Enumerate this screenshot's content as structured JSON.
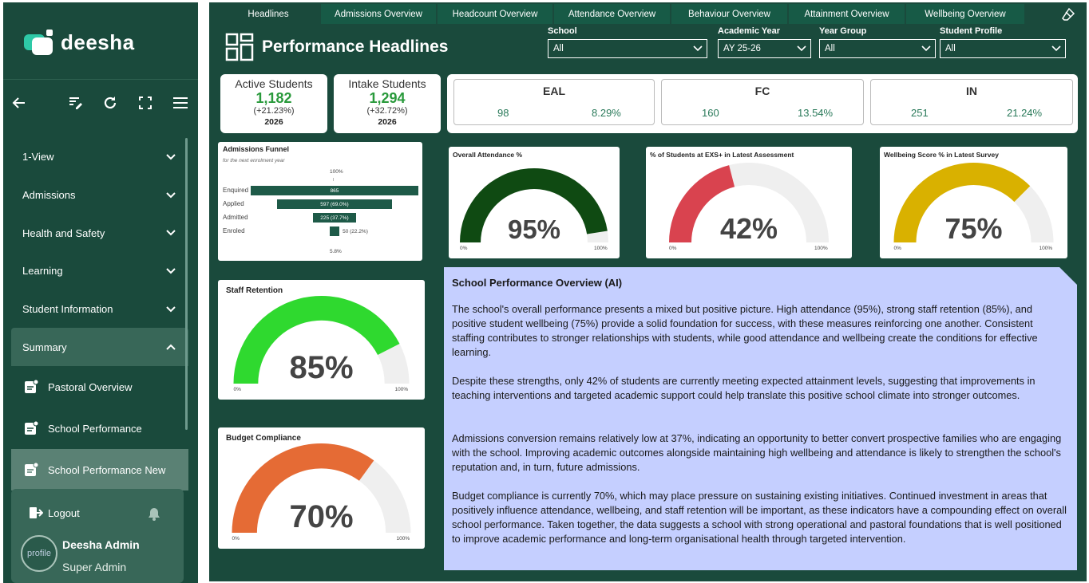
{
  "brand": {
    "name": "deesha",
    "icon": "deesha-logo"
  },
  "sidebar": {
    "toolbar_icons": [
      "back-arrow-icon",
      "edit-list-icon",
      "refresh-icon",
      "fullscreen-icon",
      "hamburger-menu-icon"
    ],
    "nav": [
      {
        "label": "1-View",
        "icon": "chevron-down-icon"
      },
      {
        "label": "Admissions",
        "icon": "chevron-down-icon"
      },
      {
        "label": "Health and Safety",
        "icon": "chevron-down-icon"
      },
      {
        "label": "Learning",
        "icon": "chevron-down-icon"
      },
      {
        "label": "Student Information",
        "icon": "chevron-down-icon"
      },
      {
        "label": "Summary",
        "icon": "chevron-up-icon"
      }
    ],
    "summary_items": [
      {
        "label": "Pastoral Overview",
        "icon": "document-icon"
      },
      {
        "label": "School Performance",
        "icon": "document-icon"
      },
      {
        "label": "School Performance New",
        "icon": "document-icon",
        "active": true
      }
    ],
    "logout_label": "Logout",
    "user": {
      "name": "Deesha Admin",
      "role": "Super Admin",
      "avatar_text": "profile"
    }
  },
  "tabs": [
    {
      "label": "Headlines",
      "active": true
    },
    {
      "label": "Admissions Overview"
    },
    {
      "label": "Headcount Overview"
    },
    {
      "label": "Attendance Overview"
    },
    {
      "label": "Behaviour Overview"
    },
    {
      "label": "Attainment Overview"
    },
    {
      "label": "Wellbeing Overview"
    }
  ],
  "header": {
    "title": "Performance Headlines",
    "icon": "dashboard-grid-icon"
  },
  "filters": [
    {
      "label": "School",
      "value": "All"
    },
    {
      "label": "Academic Year",
      "value": "AY 25-26"
    },
    {
      "label": "Year Group",
      "value": "All"
    },
    {
      "label": "Student Profile",
      "value": "All"
    }
  ],
  "kpis": [
    {
      "title": "Active Students",
      "value": "1,182",
      "change": "(+21.23%)",
      "year": "2026"
    },
    {
      "title": "Intake Students",
      "value": "1,294",
      "change": "(+32.72%)",
      "year": "2026"
    }
  ],
  "profile_stats": [
    {
      "title": "EAL",
      "count": "98",
      "pct": "8.29%"
    },
    {
      "title": "FC",
      "count": "160",
      "pct": "13.54%"
    },
    {
      "title": "IN",
      "count": "251",
      "pct": "21.24%"
    }
  ],
  "funnel": {
    "title": "Admissions Funnel",
    "subtitle": "for the next enrolment year",
    "top_label": "100%",
    "bottom_label": "5.8%",
    "stages": [
      {
        "label": "Enquired",
        "value": 865,
        "text": "865",
        "pct": 100
      },
      {
        "label": "Applied",
        "value": 597,
        "text": "597 (69.0%)",
        "pct": 69.0
      },
      {
        "label": "Admitted",
        "value": 225,
        "text": "225 (37.7%)",
        "pct": 26.0
      },
      {
        "label": "Enroled",
        "value": 50,
        "text": "50 (22.2%)",
        "pct": 5.8
      }
    ]
  },
  "gauges": [
    {
      "id": "attendance",
      "title": "Overall Attendance %",
      "value": 95,
      "label": "95%",
      "color": "#0f4a12",
      "min": "0%",
      "max": "100%"
    },
    {
      "id": "exs",
      "title": "% of Students at EXS+ in Latest Assessment",
      "value": 42,
      "label": "42%",
      "color": "#d9434f",
      "min": "0%",
      "max": "100%"
    },
    {
      "id": "wellbeing",
      "title": "Wellbeing Score % in Latest Survey",
      "value": 75,
      "label": "75%",
      "color": "#d9b100",
      "min": "0%",
      "max": "100%"
    },
    {
      "id": "retention",
      "title": "Staff Retention",
      "value": 85,
      "label": "85%",
      "color": "#2fd92f",
      "min": "0%",
      "max": "100%"
    },
    {
      "id": "budget",
      "title": "Budget Compliance",
      "value": 70,
      "label": "70%",
      "color": "#e56b35",
      "min": "0%",
      "max": "100%"
    }
  ],
  "ai": {
    "title": "School Performance Overview (AI)",
    "paragraphs": [
      "The school's overall performance presents a mixed but positive picture. High attendance (95%), strong staff retention (85%), and positive student wellbeing (75%) provide a solid foundation for success, with these measures reinforcing one another. Consistent staffing contributes to stronger relationships with students, while good attendance and wellbeing create the conditions for effective learning.",
      "Despite these strengths, only 42% of students are currently meeting expected attainment levels, suggesting that improvements in teaching interventions and targeted academic support could help translate this positive school climate into stronger outcomes.",
      "Admissions conversion remains relatively low at 37%, indicating an opportunity to better convert prospective families who are engaging with the school. Improving academic outcomes alongside maintaining high wellbeing and attendance is likely to strengthen the school's reputation and, in turn, future admissions.",
      "Budget compliance is currently 70%, which may place pressure on sustaining existing initiatives. Continued investment in areas that positively influence attendance, wellbeing, and staff retention will be important, as these indicators have a compounding effect on overall school performance. Taken together, the data suggests a school with strong operational and pastoral foundations that is well positioned to improve academic performance and long-term organisational health through targeted intervention."
    ]
  },
  "colors": {
    "sidebar_bg": "#1a4a3c",
    "accent_green": "#2a9a3c",
    "ai_panel_bg": "#c5cfff"
  }
}
